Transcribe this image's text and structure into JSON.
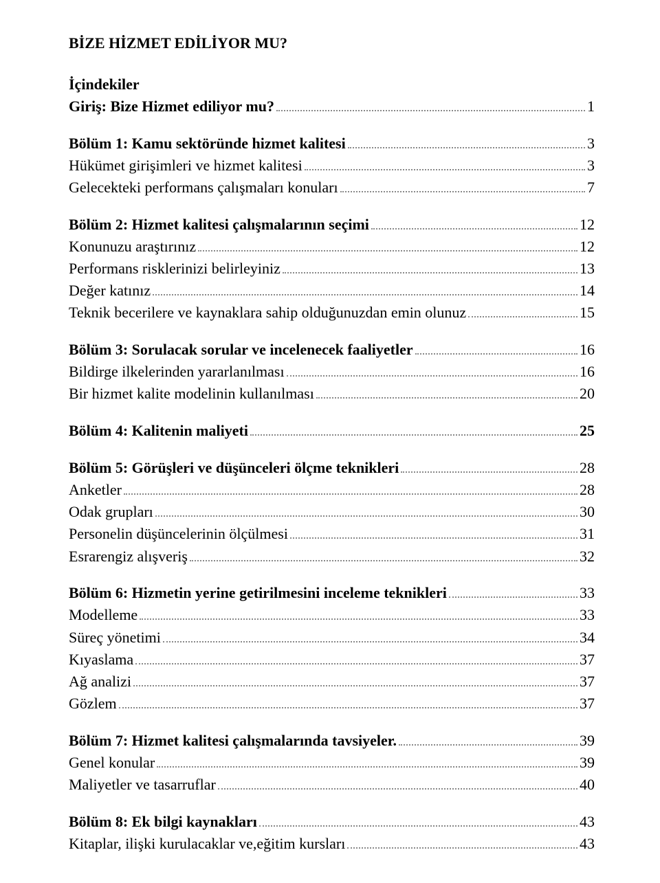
{
  "doc_title": "BİZE HİZMET EDİLİYOR MU?",
  "toc_heading": "İçindekiler",
  "sections": [
    {
      "header": {
        "label": "Giriş: Bize Hizmet ediliyor mu?",
        "page": "1",
        "bold": true
      },
      "items": []
    },
    {
      "header": {
        "label": "Bölüm 1: Kamu sektöründe hizmet kalitesi",
        "page": "3",
        "bold": true
      },
      "items": [
        {
          "label": "Hükümet girişimleri ve hizmet kalitesi",
          "page": "3"
        },
        {
          "label": "Gelecekteki performans çalışmaları konuları",
          "page": "7"
        }
      ]
    },
    {
      "header": {
        "label": "Bölüm 2: Hizmet kalitesi çalışmalarının seçimi",
        "page": "12",
        "bold": true
      },
      "items": [
        {
          "label": "Konunuzu araştırınız",
          "page": "12"
        },
        {
          "label": "Performans risklerinizi belirleyiniz",
          "page": "13"
        },
        {
          "label": "Değer katınız",
          "page": "14"
        },
        {
          "label": "Teknik becerilere ve kaynaklara sahip olduğunuzdan emin olunuz",
          "page": "15"
        }
      ]
    },
    {
      "header": {
        "label": "Bölüm 3: Sorulacak sorular ve incelenecek faaliyetler",
        "page": "16",
        "bold": true
      },
      "items": [
        {
          "label": "Bildirge ilkelerinden yararlanılması",
          "page": "16"
        },
        {
          "label": "Bir hizmet kalite modelinin kullanılması",
          "page": "20"
        }
      ]
    },
    {
      "header": {
        "label": "Bölüm 4: Kalitenin maliyeti",
        "page": "25",
        "bold": true,
        "page_bold": true
      },
      "items": []
    },
    {
      "header": {
        "label": "Bölüm 5: Görüşleri ve düşünceleri ölçme teknikleri",
        "page": "28",
        "bold": true
      },
      "items": [
        {
          "label": "Anketler",
          "page": "28"
        },
        {
          "label": "Odak grupları",
          "page": "30"
        },
        {
          "label": "Personelin düşüncelerinin ölçülmesi",
          "page": "31"
        },
        {
          "label": "Esrarengiz alışveriş",
          "page": "32"
        }
      ]
    },
    {
      "header": {
        "label": "Bölüm 6: Hizmetin yerine getirilmesini inceleme teknikleri",
        "page": "33",
        "bold": true
      },
      "items": [
        {
          "label": "Modelleme",
          "page": "33"
        },
        {
          "label": "Süreç yönetimi",
          "page": "34"
        },
        {
          "label": "Kıyaslama",
          "page": "37"
        },
        {
          "label": "Ağ analizi",
          "page": "37"
        },
        {
          "label": "Gözlem",
          "page": "37"
        }
      ]
    },
    {
      "header": {
        "label": "Bölüm 7: Hizmet kalitesi çalışmalarında tavsiyeler.",
        "page": "39",
        "bold": true
      },
      "items": [
        {
          "label": "Genel konular",
          "page": "39"
        },
        {
          "label": "Maliyetler ve tasarruflar",
          "page": "40"
        }
      ]
    },
    {
      "header": {
        "label": "Bölüm 8: Ek bilgi kaynakları",
        "page": "43",
        "bold": true
      },
      "items": [
        {
          "label": "Kitaplar, ilişki kurulacaklar ve,eğitim kursları",
          "page": "43"
        }
      ]
    }
  ]
}
